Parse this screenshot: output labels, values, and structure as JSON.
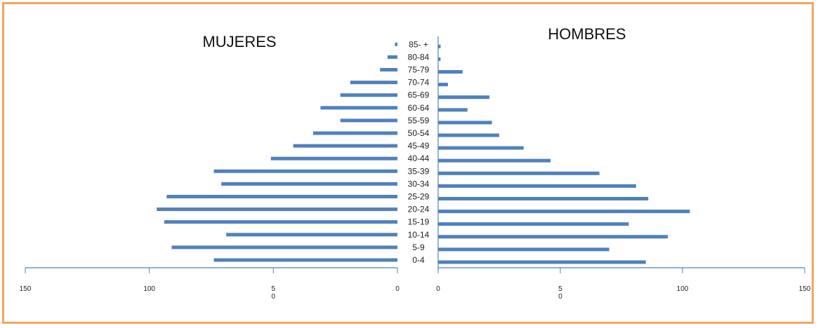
{
  "chart_data": {
    "type": "bar",
    "orientation": "horizontal",
    "layout": "population-pyramid",
    "legend": "none",
    "grid": false,
    "categories": [
      "0-4",
      "5-9",
      "10-14",
      "15-19",
      "20-24",
      "25-29",
      "30-34",
      "35-39",
      "40-44",
      "45-49",
      "50-54",
      "55-59",
      "60-64",
      "65-69",
      "70-74",
      "75-79",
      "80-84",
      "85- +"
    ],
    "series": [
      {
        "name": "MUJERES",
        "values": [
          74,
          91,
          69,
          94,
          97,
          93,
          71,
          74,
          51,
          42,
          34,
          23,
          31,
          23,
          19,
          7,
          4,
          1
        ],
        "color": "#4f81bd"
      },
      {
        "name": "HOMBRES",
        "values": [
          85,
          70,
          94,
          78,
          103,
          86,
          81,
          66,
          46,
          35,
          25,
          22,
          12,
          21,
          4,
          10,
          1,
          1
        ],
        "color": "#4f81bd"
      }
    ],
    "left_axis_ticks": [
      "150",
      "100",
      "5\n0",
      "0"
    ],
    "right_axis_ticks": [
      "0",
      "5\n0",
      "100",
      "150"
    ],
    "xlim": [
      0,
      150
    ],
    "axis_color": "#4f81bd"
  }
}
